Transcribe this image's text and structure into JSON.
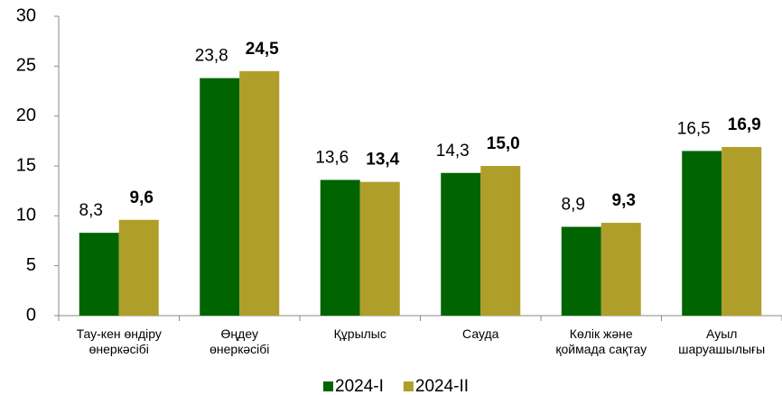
{
  "chart_data": {
    "type": "bar",
    "categories": [
      "Тау-кен өндіру өнеркәсібі",
      "Өңдеу өнеркәсібі",
      "Құрылыс",
      "Сауда",
      "Көлік және қоймада сақтау",
      "Ауыл шаруашылығы"
    ],
    "series": [
      {
        "name": "2024-I",
        "color": "#006400",
        "values": [
          8.3,
          23.8,
          13.6,
          14.3,
          8.9,
          16.5
        ],
        "value_labels": [
          "8,3",
          "23,8",
          "13,6",
          "14,3",
          "8,9",
          "16,5"
        ]
      },
      {
        "name": "2024-II",
        "color": "#b09e2a",
        "values": [
          9.6,
          24.5,
          13.4,
          15.0,
          9.3,
          16.9
        ],
        "value_labels": [
          "9,6",
          "24,5",
          "13,4",
          "15,0",
          "9,3",
          "16,9"
        ]
      }
    ],
    "ylim": [
      0,
      30
    ],
    "yticks": [
      0,
      5,
      10,
      15,
      20,
      25,
      30
    ],
    "grid": false,
    "legend": "bottom"
  }
}
